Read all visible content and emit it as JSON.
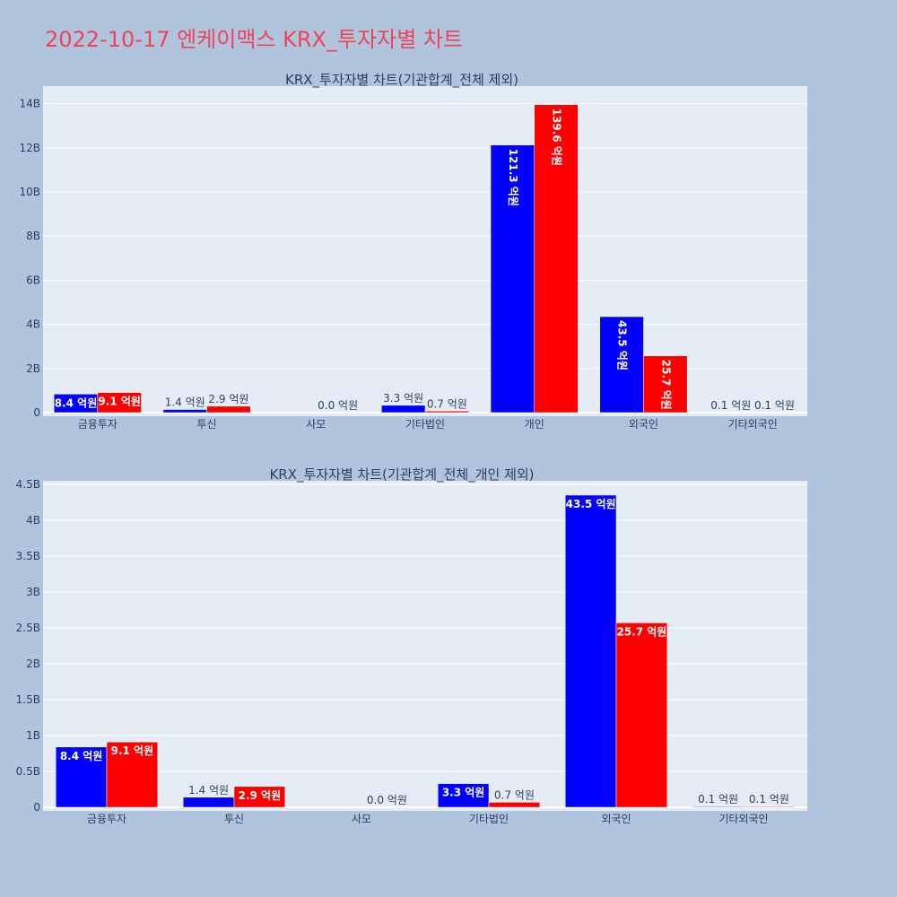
{
  "page_title": "2022-10-17 엔케이맥스 KRX_투자자별 차트",
  "colors": {
    "buy": "#0000ff",
    "sell": "#ff0000",
    "plot_bg": "#e5ecf6",
    "page_bg": "#b0c4de"
  },
  "chart_data": [
    {
      "type": "bar",
      "title": "KRX_투자자별 차트(기관합계_전체 제외)",
      "categories": [
        "금융투자",
        "투신",
        "사모",
        "기타법인",
        "개인",
        "외국인",
        "기타외국인"
      ],
      "series": [
        {
          "values": [
            0.84,
            0.14,
            0.0,
            0.33,
            12.13,
            4.35,
            0.01
          ],
          "labels": [
            "8.4 억원",
            "1.4 억원",
            "",
            "3.3 억원",
            "121.3 억원",
            "43.5 억원",
            "0.1 억원"
          ]
        },
        {
          "values": [
            0.91,
            0.29,
            0.0,
            0.07,
            13.96,
            2.57,
            0.01
          ],
          "labels": [
            "9.1 억원",
            "2.9 억원",
            "0.0 억원",
            "0.7 억원",
            "139.6 억원",
            "25.7 억원",
            "0.1 억원"
          ]
        }
      ],
      "y_unit": "B",
      "ylim": [
        0,
        14.8
      ],
      "yticks": [
        0,
        2,
        4,
        6,
        8,
        10,
        12,
        14
      ],
      "ytick_labels": [
        "0",
        "2B",
        "4B",
        "6B",
        "8B",
        "10B",
        "12B",
        "14B"
      ],
      "grid": true
    },
    {
      "type": "bar",
      "title": "KRX_투자자별 차트(기관합계_전체_개인 제외)",
      "categories": [
        "금융투자",
        "투신",
        "사모",
        "기타법인",
        "외국인",
        "기타외국인"
      ],
      "series": [
        {
          "values": [
            0.84,
            0.14,
            0.0,
            0.33,
            4.35,
            0.01
          ],
          "labels": [
            "8.4 억원",
            "1.4 억원",
            "",
            "3.3 억원",
            "43.5 억원",
            "0.1 억원"
          ]
        },
        {
          "values": [
            0.91,
            0.29,
            0.0,
            0.07,
            2.57,
            0.01
          ],
          "labels": [
            "9.1 억원",
            "2.9 억원",
            "0.0 억원",
            "0.7 억원",
            "25.7 억원",
            "0.1 억원"
          ]
        }
      ],
      "y_unit": "B",
      "ylim": [
        0,
        4.55
      ],
      "yticks": [
        0,
        0.5,
        1,
        1.5,
        2,
        2.5,
        3,
        3.5,
        4,
        4.5
      ],
      "ytick_labels": [
        "0",
        "0.5B",
        "1B",
        "1.5B",
        "2B",
        "2.5B",
        "3B",
        "3.5B",
        "4B",
        "4.5B"
      ],
      "grid": true
    }
  ]
}
